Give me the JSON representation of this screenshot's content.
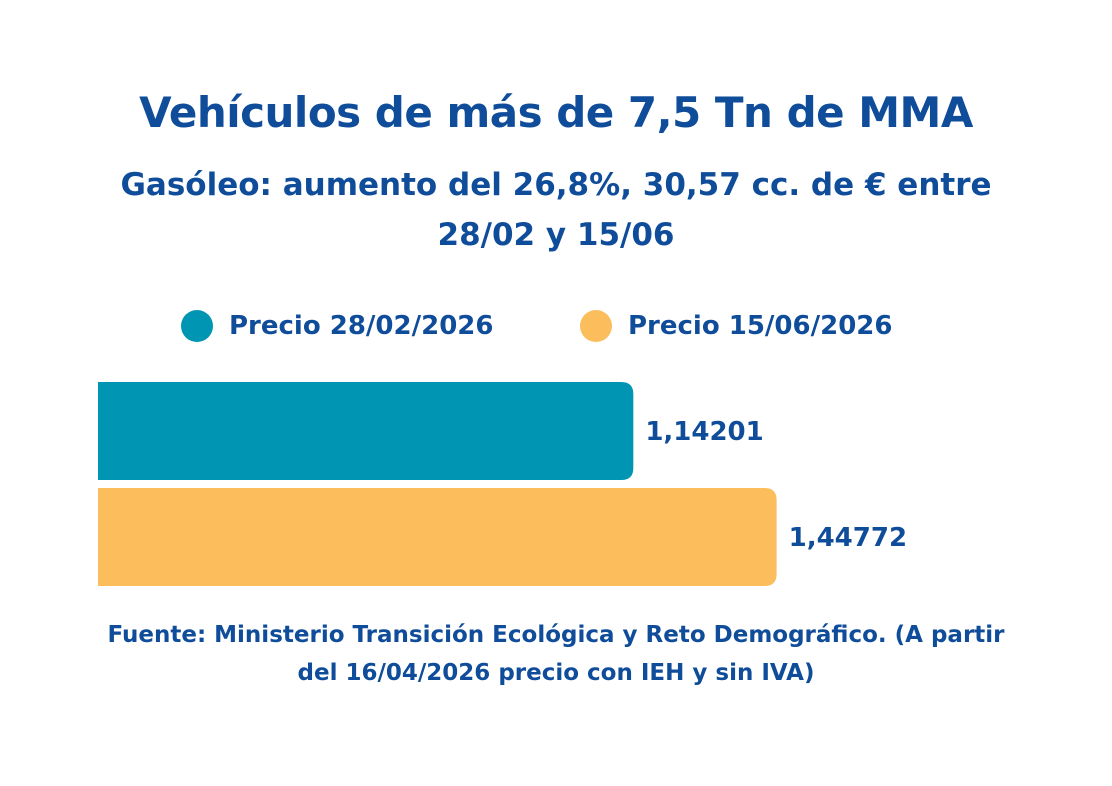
{
  "colors": {
    "text": "#0f4c9a",
    "series_1": "#0096b3",
    "series_2": "#fcbd5d",
    "background": "#ffffff"
  },
  "chart_data": {
    "type": "bar",
    "orientation": "horizontal",
    "title": "Vehículos de más de 7,5 Tn de MMA",
    "subtitle": "Gasóleo: aumento del 26,8%, 30,57 cc. de € entre 28/02 y 15/06",
    "legend_position": "top",
    "grid": false,
    "xlim": [
      0,
      1.92
    ],
    "series": [
      {
        "name": "Precio 28/02/2026",
        "values": [
          1.14201
        ],
        "label": "1,14201",
        "color": "#0096b3"
      },
      {
        "name": "Precio 15/06/2026",
        "values": [
          1.44772
        ],
        "label": "1,44772",
        "color": "#fcbd5d"
      }
    ],
    "source": "Fuente: Ministerio Transición Ecológica y Reto Demográfico. (A partir del 16/04/2026 precio con IEH y sin IVA)"
  }
}
